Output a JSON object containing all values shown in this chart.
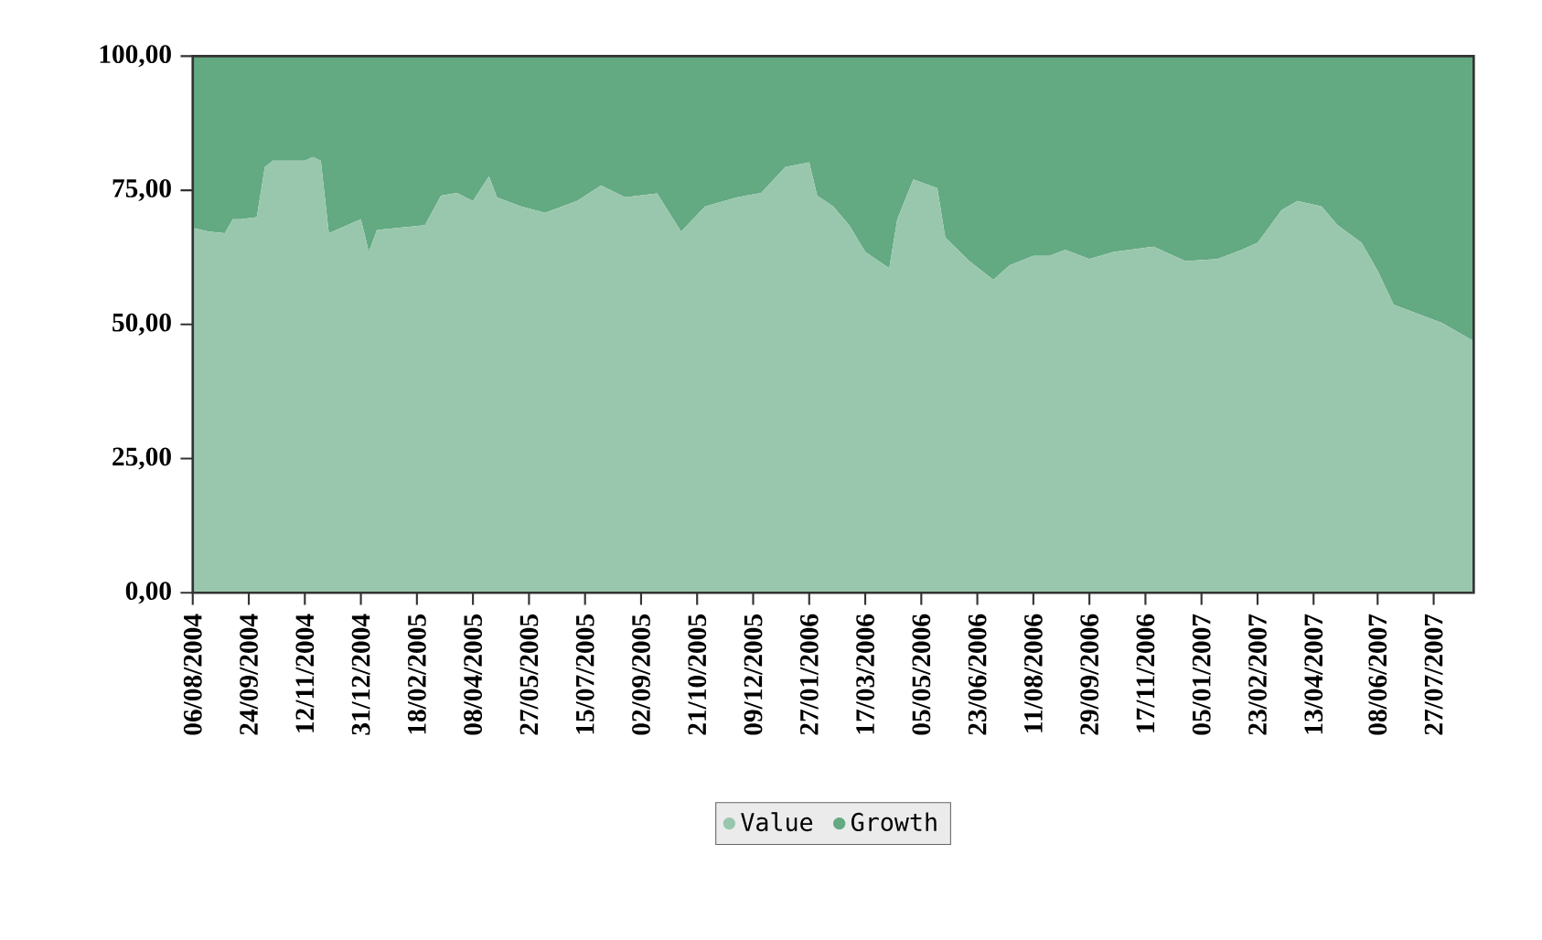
{
  "chart_data": {
    "type": "area",
    "stacked": true,
    "legend": "bottom",
    "x": [
      "2004-08-06",
      "2004-08-20",
      "2004-09-03",
      "2004-09-10",
      "2004-09-17",
      "2004-10-01",
      "2004-10-08",
      "2004-10-15",
      "2004-11-12",
      "2004-11-19",
      "2004-11-26",
      "2004-12-03",
      "2004-12-31",
      "2005-01-07",
      "2005-01-14",
      "2005-02-25",
      "2005-03-11",
      "2005-03-25",
      "2005-04-08",
      "2005-04-22",
      "2005-04-29",
      "2005-05-20",
      "2005-06-10",
      "2005-07-08",
      "2005-07-29",
      "2005-08-19",
      "2005-09-16",
      "2005-10-07",
      "2005-10-28",
      "2005-11-25",
      "2005-12-16",
      "2006-01-06",
      "2006-01-27",
      "2006-02-03",
      "2006-02-17",
      "2006-03-03",
      "2006-03-17",
      "2006-04-07",
      "2006-04-14",
      "2006-04-28",
      "2006-05-19",
      "2006-05-26",
      "2006-06-16",
      "2006-07-07",
      "2006-07-21",
      "2006-08-11",
      "2006-08-25",
      "2006-09-08",
      "2006-09-29",
      "2006-10-20",
      "2006-11-24",
      "2006-12-22",
      "2007-01-19",
      "2007-02-09",
      "2007-02-23",
      "2007-03-16",
      "2007-03-30",
      "2007-04-20",
      "2007-05-04",
      "2007-05-25",
      "2007-06-08",
      "2007-06-22",
      "2007-07-13",
      "2007-08-03",
      "2007-08-31"
    ],
    "series": [
      {
        "name": "Value",
        "color": "#99c7ae",
        "values": [
          68,
          67.3,
          67,
          69.6,
          69.6,
          70,
          79.3,
          80.5,
          80.5,
          81.2,
          80.5,
          67,
          69.6,
          63.5,
          67.6,
          68.5,
          74,
          74.5,
          73,
          77.6,
          73.7,
          72,
          70.8,
          73,
          75.9,
          73.7,
          74.4,
          67.3,
          72,
          73.7,
          74.5,
          79.3,
          80.2,
          74,
          72,
          68.5,
          63.5,
          60.5,
          69.6,
          77,
          75.4,
          66.2,
          61.8,
          58.3,
          61,
          62.8,
          62.8,
          63.9,
          62.2,
          63.5,
          64.5,
          61.8,
          62.2,
          63.9,
          65.2,
          71.3,
          73,
          72,
          68.5,
          65.2,
          60,
          53.7,
          52,
          50.3,
          46.9
        ]
      },
      {
        "name": "Growth",
        "color": "#63a981",
        "values": [
          32,
          32.7,
          33,
          30.4,
          30.4,
          30,
          20.7,
          19.5,
          19.5,
          18.8,
          19.5,
          33,
          30.4,
          36.5,
          32.4,
          31.5,
          26,
          25.5,
          27,
          22.4,
          26.3,
          28,
          29.2,
          27,
          24.1,
          26.3,
          25.6,
          32.7,
          28,
          26.3,
          25.5,
          20.7,
          19.8,
          26,
          28,
          31.5,
          36.5,
          39.5,
          30.4,
          23,
          24.6,
          33.8,
          38.2,
          41.7,
          39,
          37.2,
          37.2,
          36.1,
          37.8,
          36.5,
          35.5,
          38.2,
          37.8,
          36.1,
          34.8,
          28.7,
          27,
          28,
          31.5,
          34.8,
          40,
          46.3,
          48,
          49.7,
          53.1
        ]
      }
    ],
    "xlim": [
      "2004-08-06",
      "2007-08-31"
    ],
    "xticks": [
      {
        "value": "2004-08-06",
        "label": "06/08/2004"
      },
      {
        "value": "2004-09-24",
        "label": "24/09/2004"
      },
      {
        "value": "2004-11-12",
        "label": "12/11/2004"
      },
      {
        "value": "2004-12-31",
        "label": "31/12/2004"
      },
      {
        "value": "2005-02-18",
        "label": "18/02/2005"
      },
      {
        "value": "2005-04-08",
        "label": "08/04/2005"
      },
      {
        "value": "2005-05-27",
        "label": "27/05/2005"
      },
      {
        "value": "2005-07-15",
        "label": "15/07/2005"
      },
      {
        "value": "2005-09-02",
        "label": "02/09/2005"
      },
      {
        "value": "2005-10-21",
        "label": "21/10/2005"
      },
      {
        "value": "2005-12-09",
        "label": "09/12/2005"
      },
      {
        "value": "2006-01-27",
        "label": "27/01/2006"
      },
      {
        "value": "2006-03-17",
        "label": "17/03/2006"
      },
      {
        "value": "2006-05-05",
        "label": "05/05/2006"
      },
      {
        "value": "2006-06-23",
        "label": "23/06/2006"
      },
      {
        "value": "2006-08-11",
        "label": "11/08/2006"
      },
      {
        "value": "2006-09-29",
        "label": "29/09/2006"
      },
      {
        "value": "2006-11-17",
        "label": "17/11/2006"
      },
      {
        "value": "2007-01-05",
        "label": "05/01/2007"
      },
      {
        "value": "2007-02-23",
        "label": "23/02/2007"
      },
      {
        "value": "2007-04-13",
        "label": "13/04/2007"
      },
      {
        "value": "2007-06-08",
        "label": "08/06/2007"
      },
      {
        "value": "2007-07-27",
        "label": "27/07/2007"
      }
    ],
    "ylim": [
      0,
      100
    ],
    "yticks": [
      {
        "value": 0,
        "label": "0,00"
      },
      {
        "value": 25,
        "label": "25,00"
      },
      {
        "value": 50,
        "label": "50,00"
      },
      {
        "value": 75,
        "label": "75,00"
      },
      {
        "value": 100,
        "label": "100,00"
      }
    ]
  }
}
